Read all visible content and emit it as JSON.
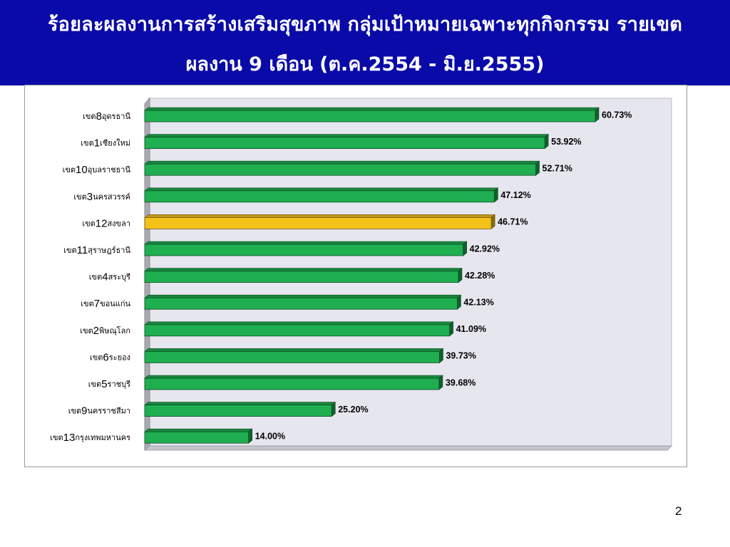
{
  "header": {
    "title_line1": "ร้อยละผลงานการสร้างเสริมสุขภาพ กลุ่มเป้าหมายเฉพาะทุกกิจกรรม รายเขต",
    "title_line2": "ผลงาน 9 เดือน (ต.ค.2554 - มิ.ย.2555)"
  },
  "page_number": "2",
  "colors": {
    "header_bg": "#0a0aa8",
    "bar_default": "#1fae50",
    "bar_highlight": "#f5c21a",
    "plot_bg": "#e6e6ee"
  },
  "chart_data": {
    "type": "bar",
    "orientation": "horizontal",
    "style": "3d",
    "categories": [
      {
        "prefix": "เขต",
        "num": "8",
        "name": "อุดรธานี"
      },
      {
        "prefix": "เขต",
        "num": "1",
        "name": "เชียงใหม่"
      },
      {
        "prefix": "เขต",
        "num": "10",
        "name": "อุบลราชธานี"
      },
      {
        "prefix": "เขต",
        "num": "3",
        "name": "นครสวรรค์"
      },
      {
        "prefix": "เขต",
        "num": "12",
        "name": "สงขลา"
      },
      {
        "prefix": "เขต",
        "num": "11",
        "name": "สุราษฎร์ธานี"
      },
      {
        "prefix": "เขต",
        "num": "4",
        "name": "สระบุรี"
      },
      {
        "prefix": "เขต",
        "num": "7",
        "name": "ขอนแก่น"
      },
      {
        "prefix": "เขต",
        "num": "2",
        "name": "พิษณุโลก"
      },
      {
        "prefix": "เขต",
        "num": "6",
        "name": "ระยอง"
      },
      {
        "prefix": "เขต",
        "num": "5",
        "name": "ราชบุรี"
      },
      {
        "prefix": "เขต",
        "num": "9",
        "name": "นครราชสีมา"
      },
      {
        "prefix": "เขต",
        "num": "13",
        "name": "กรุงเทพมหานคร"
      }
    ],
    "values": [
      60.73,
      53.92,
      52.71,
      47.12,
      46.71,
      42.92,
      42.28,
      42.13,
      41.09,
      39.73,
      39.68,
      25.2,
      14.0
    ],
    "value_labels": [
      "60.73%",
      "53.92%",
      "52.71%",
      "47.12%",
      "46.71%",
      "42.92%",
      "42.28%",
      "42.13%",
      "41.09%",
      "39.73%",
      "39.68%",
      "25.20%",
      "14.00%"
    ],
    "highlight_index": 4,
    "xlim": [
      0,
      70
    ],
    "grid": false,
    "legend": "none"
  }
}
